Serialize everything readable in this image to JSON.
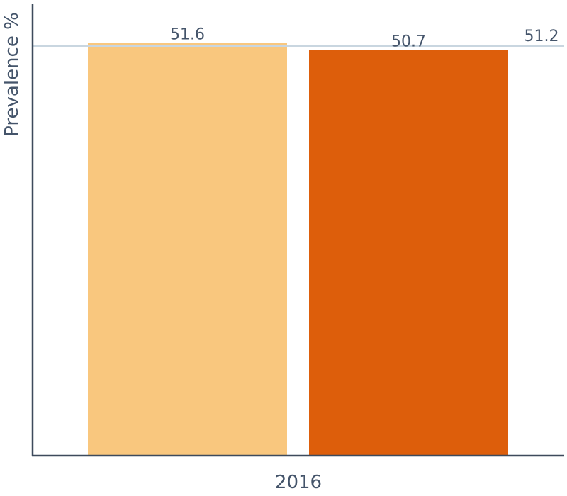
{
  "chart_data": {
    "type": "bar",
    "categories": [
      "2016"
    ],
    "series": [
      {
        "values": [
          51.6
        ],
        "color": "#f9c77e"
      },
      {
        "values": [
          50.7
        ],
        "color": "#dd5e0b"
      }
    ],
    "reference_line": {
      "value": 51.2,
      "label": "51.2",
      "color": "#c9d6e0"
    },
    "data_labels": [
      "51.6",
      "50.7"
    ],
    "xlabel": "2016",
    "ylabel": "Prevalence %",
    "ylim": [
      0,
      56.5
    ],
    "grid": false,
    "legend": "none"
  }
}
